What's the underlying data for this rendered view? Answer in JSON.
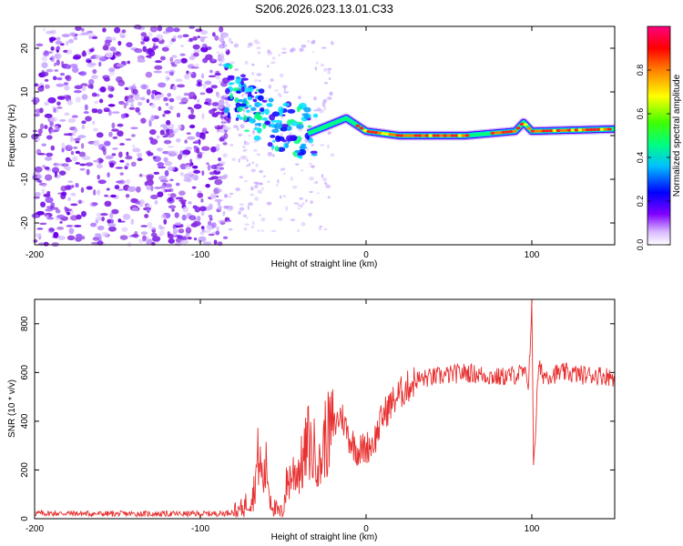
{
  "title": "S206.2026.023.13.01.C33",
  "chart_data": [
    {
      "type": "heatmap",
      "xlabel": "Height of straight line (km)",
      "ylabel": "Frequency (Hz)",
      "xlim": [
        -200,
        150
      ],
      "ylim": [
        -25,
        25
      ],
      "xticks": [
        -200,
        -100,
        0,
        100
      ],
      "yticks": [
        -20,
        -10,
        0,
        10,
        20
      ],
      "ridge": {
        "description_points": [
          [
            -85,
            11
          ],
          [
            -75,
            8
          ],
          [
            -65,
            5
          ],
          [
            -55,
            3
          ],
          [
            -45,
            1.5
          ],
          [
            -35,
            0.5
          ],
          [
            -25,
            2
          ],
          [
            -12,
            4
          ],
          [
            0,
            1
          ],
          [
            20,
            0
          ],
          [
            60,
            0
          ],
          [
            90,
            1
          ],
          [
            95,
            3
          ],
          [
            100,
            1
          ],
          [
            150,
            1.5
          ]
        ]
      },
      "colorbar": {
        "label": "Normalized spectral amplitude",
        "range": [
          0,
          1
        ],
        "ticks": [
          0.0,
          0.2,
          0.4,
          0.6,
          0.8
        ],
        "tick_labels": [
          "0.0",
          "0.2",
          "0.4",
          "0.6",
          "0.8"
        ],
        "colormap": [
          "#ffffff",
          "#8000ff",
          "#0000ff",
          "#00c0ff",
          "#00ff80",
          "#80ff00",
          "#ffff00",
          "#ff8000",
          "#ff0000",
          "#ff0080"
        ]
      }
    },
    {
      "type": "line",
      "xlabel": "Height of straight line (km)",
      "ylabel": "SNR (10 * v/v)",
      "xlim": [
        -200,
        150
      ],
      "ylim": [
        0,
        900
      ],
      "xticks": [
        -200,
        -100,
        0,
        100
      ],
      "yticks": [
        0,
        200,
        400,
        600,
        800
      ],
      "series": [
        {
          "name": "SNR",
          "color": "#e83030",
          "x": [
            -200,
            -180,
            -160,
            -140,
            -120,
            -100,
            -85,
            -75,
            -68,
            -65,
            -62,
            -60,
            -58,
            -55,
            -52,
            -50,
            -48,
            -45,
            -42,
            -40,
            -38,
            -35,
            -32,
            -30,
            -28,
            -25,
            -22,
            -20,
            -15,
            -10,
            -5,
            0,
            5,
            10,
            15,
            20,
            25,
            30,
            40,
            50,
            60,
            70,
            80,
            90,
            95,
            98,
            100,
            101,
            102,
            104,
            107,
            110,
            120,
            130,
            140,
            150
          ],
          "values": [
            22,
            22,
            20,
            20,
            20,
            20,
            22,
            40,
            100,
            260,
            150,
            220,
            90,
            40,
            20,
            40,
            140,
            180,
            200,
            210,
            230,
            320,
            260,
            300,
            200,
            330,
            350,
            370,
            430,
            330,
            280,
            290,
            320,
            420,
            470,
            510,
            540,
            570,
            580,
            590,
            600,
            590,
            580,
            590,
            600,
            560,
            880,
            240,
            330,
            620,
            590,
            590,
            600,
            590,
            590,
            580
          ]
        }
      ]
    }
  ]
}
